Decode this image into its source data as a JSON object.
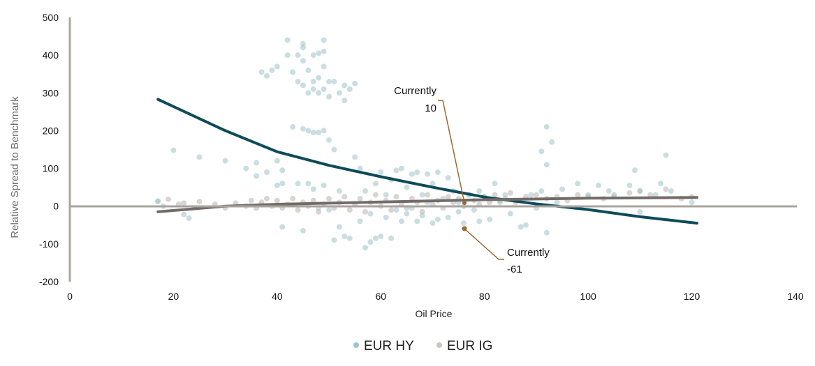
{
  "chart_data": {
    "type": "scatter",
    "title": "",
    "xlabel": "Oil Price",
    "ylabel": "Relative Spread to Benchmark",
    "xlim": [
      0,
      140
    ],
    "ylim": [
      -200,
      500
    ],
    "xticks": [
      "0",
      "20",
      "40",
      "60",
      "80",
      "100",
      "120",
      "140"
    ],
    "yticks": [
      "500",
      "400",
      "300",
      "200",
      "100",
      "0",
      "-100",
      "-200"
    ],
    "grid": false,
    "legend_placement": "bottom",
    "colors": {
      "hy_points": "#9fc3cb",
      "hy_line": "#0e4b5a",
      "ig_points": "#bcb3ae",
      "ig_line": "#736b67",
      "axis": "#a9a49f",
      "annotation": "#9a6a2f"
    },
    "series": [
      {
        "name": "EUR HY",
        "points": [
          [
            17,
            13
          ],
          [
            18,
            0
          ],
          [
            20,
            148
          ],
          [
            22,
            -22
          ],
          [
            23,
            -32
          ],
          [
            25,
            130
          ],
          [
            30,
            120
          ],
          [
            34,
            100
          ],
          [
            36,
            115
          ],
          [
            36,
            80
          ],
          [
            37,
            355
          ],
          [
            38,
            90
          ],
          [
            38,
            345
          ],
          [
            39,
            360
          ],
          [
            40,
            370
          ],
          [
            40,
            120
          ],
          [
            40,
            55
          ],
          [
            41,
            60
          ],
          [
            41,
            95
          ],
          [
            41,
            -55
          ],
          [
            42,
            440
          ],
          [
            42,
            400
          ],
          [
            43,
            210
          ],
          [
            43,
            355
          ],
          [
            44,
            330
          ],
          [
            44,
            400
          ],
          [
            44,
            60
          ],
          [
            45,
            420
          ],
          [
            45,
            430
          ],
          [
            45,
            385
          ],
          [
            45,
            320
          ],
          [
            45,
            205
          ],
          [
            45,
            -65
          ],
          [
            46,
            360
          ],
          [
            46,
            300
          ],
          [
            46,
            200
          ],
          [
            46,
            60
          ],
          [
            47,
            400
          ],
          [
            47,
            330
          ],
          [
            47,
            310
          ],
          [
            47,
            195
          ],
          [
            47,
            45
          ],
          [
            48,
            405
          ],
          [
            48,
            340
          ],
          [
            48,
            300
          ],
          [
            48,
            195
          ],
          [
            48,
            -5
          ],
          [
            49,
            440
          ],
          [
            49,
            410
          ],
          [
            49,
            370
          ],
          [
            49,
            310
          ],
          [
            49,
            200
          ],
          [
            49,
            55
          ],
          [
            50,
            330
          ],
          [
            50,
            290
          ],
          [
            50,
            175
          ],
          [
            50,
            -10
          ],
          [
            51,
            330
          ],
          [
            51,
            150
          ],
          [
            51,
            -90
          ],
          [
            52,
            300
          ],
          [
            52,
            -55
          ],
          [
            52,
            40
          ],
          [
            53,
            320
          ],
          [
            53,
            280
          ],
          [
            53,
            -80
          ],
          [
            54,
            310
          ],
          [
            54,
            -85
          ],
          [
            55,
            325
          ],
          [
            55,
            130
          ],
          [
            56,
            100
          ],
          [
            56,
            -40
          ],
          [
            57,
            -110
          ],
          [
            57,
            40
          ],
          [
            58,
            -95
          ],
          [
            58,
            -20
          ],
          [
            59,
            -85
          ],
          [
            59,
            60
          ],
          [
            60,
            -80
          ],
          [
            60,
            90
          ],
          [
            61,
            30
          ],
          [
            61,
            -30
          ],
          [
            62,
            -85
          ],
          [
            62,
            70
          ],
          [
            63,
            95
          ],
          [
            63,
            -10
          ],
          [
            64,
            100
          ],
          [
            64,
            -40
          ],
          [
            65,
            50
          ],
          [
            65,
            -20
          ],
          [
            66,
            85
          ],
          [
            66,
            -5
          ],
          [
            67,
            -40
          ],
          [
            67,
            90
          ],
          [
            68,
            30
          ],
          [
            68,
            -25
          ],
          [
            69,
            85
          ],
          [
            69,
            10
          ],
          [
            70,
            -45
          ],
          [
            70,
            60
          ],
          [
            71,
            90
          ],
          [
            71,
            -35
          ],
          [
            72,
            20
          ],
          [
            73,
            75
          ],
          [
            73,
            -30
          ],
          [
            74,
            40
          ],
          [
            75,
            10
          ],
          [
            75,
            -15
          ],
          [
            76,
            -45
          ],
          [
            77,
            30
          ],
          [
            78,
            -10
          ],
          [
            79,
            40
          ],
          [
            79,
            -40
          ],
          [
            80,
            25
          ],
          [
            81,
            -35
          ],
          [
            82,
            60
          ],
          [
            83,
            10
          ],
          [
            84,
            30
          ],
          [
            85,
            -20
          ],
          [
            86,
            15
          ],
          [
            87,
            -55
          ],
          [
            88,
            -50
          ],
          [
            89,
            30
          ],
          [
            90,
            -5
          ],
          [
            91,
            145
          ],
          [
            91,
            40
          ],
          [
            92,
            110
          ],
          [
            92,
            210
          ],
          [
            93,
            170
          ],
          [
            92,
            -70
          ],
          [
            94,
            10
          ],
          [
            95,
            45
          ],
          [
            98,
            60
          ],
          [
            100,
            30
          ],
          [
            102,
            55
          ],
          [
            104,
            40
          ],
          [
            105,
            25
          ],
          [
            108,
            55
          ],
          [
            109,
            95
          ],
          [
            110,
            -15
          ],
          [
            110,
            40
          ],
          [
            113,
            30
          ],
          [
            114,
            60
          ],
          [
            115,
            135
          ],
          [
            116,
            40
          ],
          [
            120,
            10
          ]
        ],
        "trend": [
          [
            17,
            283
          ],
          [
            30,
            200
          ],
          [
            40,
            144
          ],
          [
            50,
            108
          ],
          [
            60,
            78
          ],
          [
            70,
            50
          ],
          [
            80,
            24
          ],
          [
            90,
            6
          ],
          [
            100,
            -9
          ],
          [
            110,
            -28
          ],
          [
            121,
            -45
          ]
        ],
        "current": {
          "x": 76,
          "y": -61,
          "label": "Currently",
          "value": "-61"
        }
      },
      {
        "name": "EUR IG",
        "points": [
          [
            17,
            13
          ],
          [
            19,
            18
          ],
          [
            21,
            5
          ],
          [
            22,
            8
          ],
          [
            25,
            12
          ],
          [
            28,
            5
          ],
          [
            30,
            -5
          ],
          [
            32,
            8
          ],
          [
            34,
            0
          ],
          [
            35,
            15
          ],
          [
            36,
            -5
          ],
          [
            37,
            10
          ],
          [
            38,
            20
          ],
          [
            39,
            0
          ],
          [
            40,
            15
          ],
          [
            41,
            -5
          ],
          [
            42,
            5
          ],
          [
            43,
            20
          ],
          [
            44,
            -10
          ],
          [
            45,
            10
          ],
          [
            46,
            0
          ],
          [
            47,
            15
          ],
          [
            48,
            -15
          ],
          [
            49,
            5
          ],
          [
            50,
            20
          ],
          [
            51,
            -5
          ],
          [
            52,
            10
          ],
          [
            53,
            25
          ],
          [
            54,
            -10
          ],
          [
            55,
            5
          ],
          [
            56,
            20
          ],
          [
            57,
            -15
          ],
          [
            58,
            10
          ],
          [
            59,
            30
          ],
          [
            60,
            0
          ],
          [
            61,
            15
          ],
          [
            62,
            -10
          ],
          [
            63,
            25
          ],
          [
            64,
            5
          ],
          [
            65,
            -5
          ],
          [
            66,
            20
          ],
          [
            67,
            10
          ],
          [
            68,
            -15
          ],
          [
            69,
            30
          ],
          [
            70,
            5
          ],
          [
            71,
            15
          ],
          [
            72,
            -5
          ],
          [
            73,
            25
          ],
          [
            74,
            10
          ],
          [
            75,
            20
          ],
          [
            76,
            0
          ],
          [
            77,
            30
          ],
          [
            78,
            15
          ],
          [
            79,
            5
          ],
          [
            80,
            25
          ],
          [
            81,
            10
          ],
          [
            82,
            30
          ],
          [
            83,
            15
          ],
          [
            84,
            20
          ],
          [
            85,
            35
          ],
          [
            86,
            10
          ],
          [
            88,
            25
          ],
          [
            90,
            30
          ],
          [
            92,
            20
          ],
          [
            94,
            25
          ],
          [
            96,
            15
          ],
          [
            98,
            30
          ],
          [
            100,
            25
          ],
          [
            103,
            20
          ],
          [
            105,
            30
          ],
          [
            108,
            35
          ],
          [
            110,
            40
          ],
          [
            112,
            30
          ],
          [
            115,
            45
          ],
          [
            118,
            20
          ],
          [
            120,
            25
          ]
        ],
        "trend": [
          [
            17,
            -15
          ],
          [
            30,
            0
          ],
          [
            40,
            5
          ],
          [
            50,
            8
          ],
          [
            60,
            11
          ],
          [
            70,
            14
          ],
          [
            80,
            17
          ],
          [
            100,
            21
          ],
          [
            121,
            23
          ]
        ],
        "current": {
          "x": 76,
          "y": 10,
          "label": "Currently",
          "value": "10"
        }
      }
    ]
  }
}
